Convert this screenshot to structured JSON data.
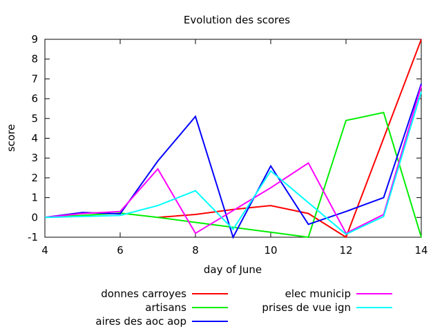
{
  "chart_data": {
    "type": "line",
    "title": "Evolution des scores",
    "xlabel": "day of June",
    "ylabel": "score",
    "xlim": [
      4,
      14
    ],
    "ylim": [
      -1,
      9
    ],
    "xticks": [
      4,
      6,
      8,
      10,
      12,
      14
    ],
    "yticks": [
      -1,
      0,
      1,
      2,
      3,
      4,
      5,
      6,
      7,
      8,
      9
    ],
    "grid": false,
    "legend_position": "bottom",
    "series": [
      {
        "name": "donnes carroyes",
        "color": "#ff0000",
        "points": [
          [
            7,
            0.0
          ],
          [
            8,
            0.15
          ],
          [
            9,
            0.4
          ],
          [
            10,
            0.6
          ],
          [
            11,
            0.2
          ],
          [
            12,
            -1.0
          ],
          [
            13,
            4.0
          ],
          [
            14,
            9.0
          ]
        ]
      },
      {
        "name": "artisans",
        "color": "#00ee00",
        "points": [
          [
            4,
            0.0
          ],
          [
            5,
            0.1
          ],
          [
            6,
            0.22
          ],
          [
            7,
            0.0
          ],
          [
            8,
            -0.25
          ],
          [
            9,
            -0.5
          ],
          [
            10,
            -0.75
          ],
          [
            11,
            -1.0
          ],
          [
            12,
            4.9
          ],
          [
            13,
            5.3
          ],
          [
            14,
            -1.0
          ]
        ]
      },
      {
        "name": "aires des aoc aop",
        "color": "#0000ff",
        "points": [
          [
            4,
            0.0
          ],
          [
            5,
            0.25
          ],
          [
            6,
            0.18
          ],
          [
            7,
            2.85
          ],
          [
            8,
            5.1
          ],
          [
            9,
            -1.0
          ],
          [
            10,
            2.6
          ],
          [
            11,
            -0.35
          ],
          [
            12,
            0.3
          ],
          [
            13,
            1.0
          ],
          [
            14,
            6.75
          ]
        ]
      },
      {
        "name": "elec municip",
        "color": "#ff00ff",
        "points": [
          [
            4,
            0.0
          ],
          [
            5,
            0.2
          ],
          [
            6,
            0.3
          ],
          [
            7,
            2.45
          ],
          [
            8,
            -0.8
          ],
          [
            9,
            0.35
          ],
          [
            10,
            1.5
          ],
          [
            11,
            2.75
          ],
          [
            12,
            -0.8
          ],
          [
            13,
            0.15
          ],
          [
            14,
            6.65
          ]
        ]
      },
      {
        "name": "prises de vue ign",
        "color": "#00ffff",
        "points": [
          [
            4,
            0.0
          ],
          [
            5,
            0.05
          ],
          [
            6,
            0.1
          ],
          [
            7,
            0.6
          ],
          [
            8,
            1.35
          ],
          [
            9,
            -0.6
          ],
          [
            10,
            2.35
          ],
          [
            11,
            0.75
          ],
          [
            12,
            -0.85
          ],
          [
            13,
            0.05
          ],
          [
            14,
            6.35
          ]
        ]
      }
    ]
  }
}
